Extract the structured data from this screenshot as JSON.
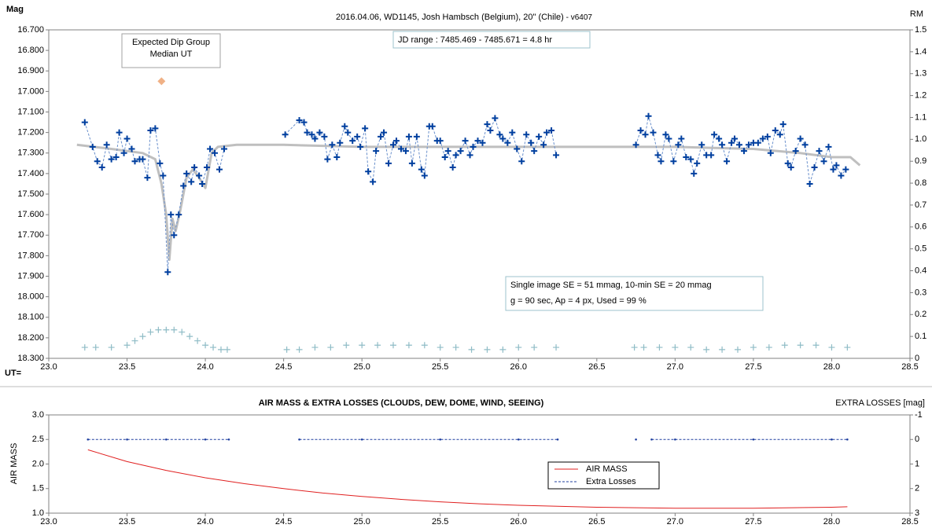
{
  "chart_data": [
    {
      "type": "line",
      "title": "2016.04.06,  WD1145, Josh Hambsch  (Belgium), 20\" (Chile)",
      "subtitle": " - v6407",
      "ylabel": "Mag",
      "y2label": "RM",
      "xlabel": "UT=",
      "xlim": [
        23.0,
        28.5
      ],
      "xticks": [
        {
          "value": 23,
          "label": "23.0"
        },
        23.5,
        {
          "value": 24,
          "label": "24.0"
        },
        24.5,
        {
          "value": 25,
          "label": "25.0"
        },
        25.5,
        {
          "value": 26,
          "label": "26.0"
        },
        26.5,
        {
          "value": 27,
          "label": "27.0"
        },
        27.5,
        {
          "value": 28,
          "label": "28.0"
        },
        28.5
      ],
      "ylim": [
        18.3,
        16.7
      ],
      "yticks": [
        {
          "value": 16.7,
          "label": "16.700"
        },
        {
          "value": 16.8,
          "label": "16.800"
        },
        {
          "value": 16.9,
          "label": "16.900"
        },
        {
          "value": 17.0,
          "label": "17.000"
        },
        {
          "value": 17.1,
          "label": "17.100"
        },
        {
          "value": 17.2,
          "label": "17.200"
        },
        {
          "value": 17.3,
          "label": "17.300"
        },
        {
          "value": 17.4,
          "label": "17.400"
        },
        {
          "value": 17.5,
          "label": "17.500"
        },
        {
          "value": 17.6,
          "label": "17.600"
        },
        {
          "value": 17.7,
          "label": "17.700"
        },
        {
          "value": 17.8,
          "label": "17.800"
        },
        {
          "value": 17.9,
          "label": "17.900"
        },
        {
          "value": 18.0,
          "label": "18.000"
        },
        {
          "value": 18.1,
          "label": "18.100"
        },
        {
          "value": 18.2,
          "label": "18.200"
        },
        {
          "value": 18.3,
          "label": "18.300"
        }
      ],
      "y2lim": [
        0,
        1.5
      ],
      "y2ticks": [
        0,
        0.1,
        0.2,
        0.3,
        0.4,
        0.5,
        0.6,
        0.7,
        0.8,
        0.9,
        {
          "value": 1,
          "label": "1.0"
        },
        1.1,
        1.2,
        1.3,
        1.4,
        1.5
      ],
      "grid": false,
      "series": [
        {
          "color": "#bfbfbf",
          "line": "solid",
          "marker": "none",
          "x": [
            23.18,
            23.4,
            23.6,
            23.68,
            23.72,
            23.75,
            23.77,
            23.79,
            23.81,
            23.84,
            23.88,
            23.92,
            23.96,
            24.0,
            24.04,
            24.08,
            24.2,
            24.5,
            25.0,
            25.5,
            26.0,
            26.5,
            27.0,
            27.5,
            27.8,
            28.0,
            28.12,
            28.18
          ],
          "values": [
            17.26,
            17.28,
            17.3,
            17.33,
            17.45,
            17.6,
            17.82,
            17.62,
            17.68,
            17.58,
            17.42,
            17.38,
            17.42,
            17.47,
            17.3,
            17.27,
            17.26,
            17.26,
            17.27,
            17.27,
            17.27,
            17.27,
            17.27,
            17.28,
            17.3,
            17.32,
            17.32,
            17.36
          ]
        },
        {
          "color": "#003f9f",
          "line": "dashed",
          "line_color": "#6a90cc",
          "marker": "plus",
          "x": [
            23.23,
            23.28,
            23.31,
            23.34,
            23.37,
            23.4,
            23.43,
            23.45,
            23.48,
            23.5,
            23.53,
            23.55,
            23.58,
            23.6,
            23.63,
            23.65,
            23.68,
            23.71,
            23.73,
            23.76,
            23.78,
            23.8,
            23.83,
            23.86,
            23.88,
            23.91,
            23.93,
            23.96,
            23.98,
            24.01,
            24.03,
            24.06,
            24.09,
            24.12,
            24.3,
            24.51,
            24.6,
            24.63,
            24.65,
            24.68,
            24.7,
            24.73,
            24.76,
            24.78,
            24.81,
            24.84,
            24.86,
            24.89,
            24.91,
            24.94,
            24.97,
            24.99,
            25.02,
            25.04,
            25.07,
            25.09,
            25.12,
            25.14,
            25.17,
            25.2,
            25.22,
            25.25,
            25.28,
            25.3,
            25.32,
            25.35,
            25.38,
            25.4,
            25.43,
            25.45,
            25.48,
            25.5,
            25.53,
            25.55,
            25.58,
            25.6,
            25.63,
            25.66,
            25.69,
            25.71,
            25.74,
            25.77,
            25.8,
            25.82,
            25.85,
            25.88,
            25.9,
            25.93,
            25.96,
            25.99,
            26.02,
            26.05,
            26.08,
            26.1,
            26.13,
            26.16,
            26.18,
            26.21,
            26.24,
            26.5,
            26.75,
            26.78,
            26.81,
            26.83,
            26.86,
            26.89,
            26.91,
            26.94,
            26.96,
            26.99,
            27.02,
            27.04,
            27.07,
            27.1,
            27.12,
            27.14,
            27.17,
            27.2,
            27.23,
            27.25,
            27.28,
            27.3,
            27.33,
            27.36,
            27.38,
            27.41,
            27.44,
            27.47,
            27.5,
            27.53,
            27.56,
            27.59,
            27.61,
            27.64,
            27.67,
            27.69,
            27.72,
            27.74,
            27.77,
            27.8,
            27.83,
            27.86,
            27.89,
            27.92,
            27.95,
            27.98,
            28.01,
            28.03,
            28.06,
            28.09
          ],
          "values": [
            17.15,
            17.27,
            17.34,
            17.37,
            17.26,
            17.33,
            17.32,
            17.2,
            17.3,
            17.23,
            17.28,
            17.34,
            17.33,
            17.33,
            17.42,
            17.19,
            17.18,
            17.35,
            17.41,
            17.88,
            17.6,
            17.7,
            17.6,
            17.46,
            17.4,
            17.44,
            17.37,
            17.41,
            17.45,
            17.37,
            17.28,
            17.3,
            17.38,
            17.28,
            null,
            17.21,
            17.14,
            17.15,
            17.2,
            17.21,
            17.23,
            17.2,
            17.22,
            17.33,
            17.26,
            17.32,
            17.25,
            17.17,
            17.2,
            17.24,
            17.22,
            17.27,
            17.18,
            17.39,
            17.44,
            17.29,
            17.22,
            17.2,
            17.35,
            17.26,
            17.24,
            17.28,
            17.29,
            17.22,
            17.35,
            17.22,
            17.38,
            17.41,
            17.17,
            17.17,
            17.24,
            17.24,
            17.32,
            17.29,
            17.37,
            17.31,
            17.29,
            17.24,
            17.31,
            17.27,
            17.24,
            17.25,
            17.16,
            17.19,
            17.13,
            17.21,
            17.23,
            17.25,
            17.2,
            17.28,
            17.34,
            17.21,
            17.25,
            17.29,
            17.22,
            17.26,
            17.2,
            17.19,
            17.31,
            null,
            17.26,
            17.19,
            17.21,
            17.12,
            17.2,
            17.31,
            17.34,
            17.21,
            17.23,
            17.34,
            17.26,
            17.23,
            17.32,
            17.33,
            17.4,
            17.35,
            17.26,
            17.31,
            17.31,
            17.21,
            17.23,
            17.26,
            17.34,
            17.25,
            17.23,
            17.26,
            17.29,
            17.26,
            17.25,
            17.25,
            17.23,
            17.22,
            17.3,
            17.19,
            17.21,
            17.16,
            17.35,
            17.37,
            17.29,
            17.23,
            17.26,
            17.45,
            17.37,
            17.29,
            17.34,
            17.27,
            17.38,
            17.36,
            17.41,
            17.38
          ]
        },
        {
          "color": "#8fbcc6",
          "line": "none",
          "marker": "plus",
          "axis": "y2",
          "x": [
            23.23,
            23.3,
            23.4,
            23.5,
            23.55,
            23.6,
            23.65,
            23.7,
            23.75,
            23.8,
            23.85,
            23.9,
            23.95,
            24.0,
            24.05,
            24.1,
            24.14,
            24.52,
            24.6,
            24.7,
            24.8,
            24.9,
            25.0,
            25.1,
            25.2,
            25.3,
            25.4,
            25.5,
            25.6,
            25.7,
            25.8,
            25.9,
            26.0,
            26.1,
            26.24,
            26.74,
            26.8,
            26.9,
            27.0,
            27.1,
            27.2,
            27.3,
            27.4,
            27.5,
            27.6,
            27.7,
            27.8,
            27.9,
            28.0,
            28.1
          ],
          "values": [
            0.05,
            0.05,
            0.05,
            0.06,
            0.08,
            0.1,
            0.12,
            0.13,
            0.13,
            0.13,
            0.12,
            0.1,
            0.08,
            0.06,
            0.05,
            0.04,
            0.04,
            0.04,
            0.04,
            0.05,
            0.05,
            0.06,
            0.06,
            0.06,
            0.06,
            0.06,
            0.06,
            0.05,
            0.05,
            0.04,
            0.04,
            0.04,
            0.05,
            0.05,
            0.05,
            0.05,
            0.05,
            0.05,
            0.05,
            0.05,
            0.04,
            0.04,
            0.04,
            0.05,
            0.05,
            0.06,
            0.06,
            0.06,
            0.05,
            0.05
          ]
        }
      ],
      "dip_marker": {
        "x": 23.72,
        "y": 16.95,
        "color": "#f0b186"
      },
      "annotations": [
        {
          "lines": [
            "Expected Dip Group",
            "Median UT"
          ]
        },
        {
          "lines": [
            "JD range  : 7485.469 - 7485.671  = 4.8 hr"
          ]
        },
        {
          "lines": [
            "Single image SE = 51 mmag, 10-min SE = 20 mmag",
            "g = 90 sec, Ap = 4 px, Used = 99 %"
          ]
        }
      ]
    },
    {
      "type": "line",
      "title": "AIR MASS & EXTRA LOSSES (CLOUDS, DEW, DOME, WIND, SEEING)",
      "ylabel": "AIR MASS",
      "y2label": "EXTRA LOSSES [mag]",
      "xlim": [
        23.0,
        28.5
      ],
      "xticks": [
        {
          "value": 23,
          "label": "23.0"
        },
        23.5,
        {
          "value": 24,
          "label": "24.0"
        },
        24.5,
        {
          "value": 25,
          "label": "25.0"
        },
        25.5,
        {
          "value": 26,
          "label": "26.0"
        },
        26.5,
        {
          "value": 27,
          "label": "27.0"
        },
        27.5,
        {
          "value": 28,
          "label": "28.0"
        },
        28.5
      ],
      "ylim": [
        1,
        3
      ],
      "yticks": [
        {
          "value": 1,
          "label": "1.0"
        },
        1.5,
        {
          "value": 2,
          "label": "2.0"
        },
        2.5,
        {
          "value": 3,
          "label": "3.0"
        }
      ],
      "y2lim": [
        3,
        -1
      ],
      "y2ticks": [
        -1,
        0,
        1,
        2,
        3
      ],
      "grid": false,
      "legend": "lower right",
      "series": [
        {
          "name": "AIR MASS",
          "color": "#e02020",
          "line": "solid",
          "marker": "none",
          "x": [
            23.25,
            23.5,
            23.75,
            24.0,
            24.25,
            24.5,
            24.75,
            25.0,
            25.25,
            25.5,
            25.75,
            26.0,
            26.25,
            26.5,
            26.75,
            27.0,
            27.25,
            27.5,
            27.75,
            28.0,
            28.1
          ],
          "values": [
            2.29,
            2.05,
            1.87,
            1.72,
            1.6,
            1.5,
            1.41,
            1.34,
            1.28,
            1.23,
            1.19,
            1.16,
            1.14,
            1.12,
            1.11,
            1.1,
            1.1,
            1.1,
            1.11,
            1.12,
            1.13
          ]
        },
        {
          "name": "Extra Losses",
          "color": "#1f3f9f",
          "line": "dashed",
          "marker": "dot",
          "axis": "y2",
          "x": [
            23.25,
            23.5,
            23.75,
            24.0,
            24.15,
            24.3,
            24.6,
            25.0,
            25.5,
            26.0,
            26.25,
            26.5,
            26.75,
            26.8,
            26.85,
            27.0,
            27.5,
            28.0,
            28.1
          ],
          "values": [
            0,
            0,
            0,
            0,
            0,
            null,
            0,
            0,
            0,
            0,
            0,
            null,
            0,
            null,
            0,
            0,
            0,
            0,
            0
          ]
        }
      ]
    }
  ]
}
